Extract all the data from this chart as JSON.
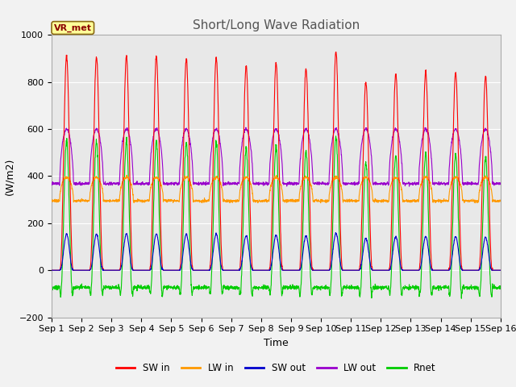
{
  "title": "Short/Long Wave Radiation",
  "ylabel": "(W/m2)",
  "xlabel": "Time",
  "ylim": [
    -200,
    1000
  ],
  "xlim": [
    0,
    15
  ],
  "station_label": "VR_met",
  "xtick_labels": [
    "Sep 1",
    "Sep 2",
    "Sep 3",
    "Sep 4",
    "Sep 5",
    "Sep 6",
    "Sep 7",
    "Sep 8",
    "Sep 9",
    "Sep 10",
    "Sep 11",
    "Sep 12",
    "Sep 13",
    "Sep 14",
    "Sep 15",
    "Sep 16"
  ],
  "colors": {
    "SW_in": "#ff0000",
    "LW_in": "#ff9900",
    "SW_out": "#0000cc",
    "LW_out": "#9900cc",
    "Rnet": "#00cc00"
  },
  "legend_labels": [
    "SW in",
    "LW in",
    "SW out",
    "LW out",
    "Rnet"
  ],
  "background_color": "#e8e8e8",
  "grid_color": "#ffffff",
  "title_fontsize": 11,
  "label_fontsize": 9,
  "tick_fontsize": 8
}
